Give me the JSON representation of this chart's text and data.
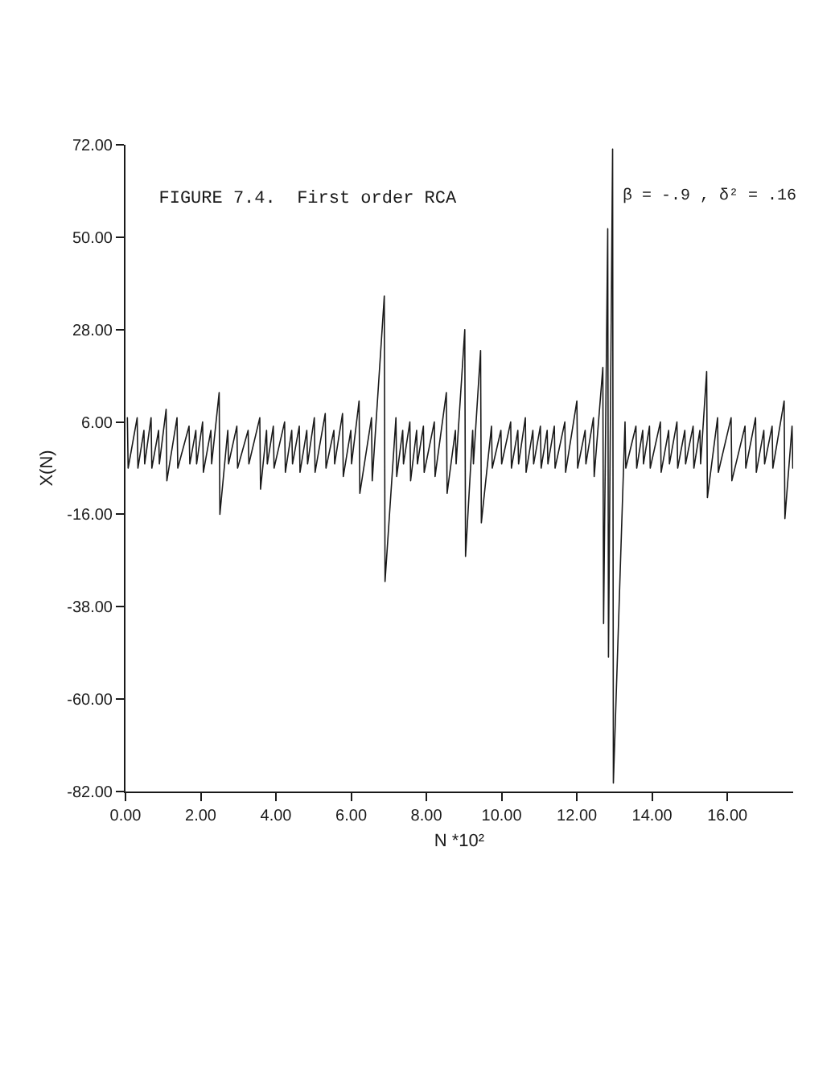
{
  "chart_data": {
    "type": "line",
    "title": "FIGURE 7.4.  First order RCA",
    "xlabel": "N *10²",
    "ylabel": "X(N)",
    "annotations": [
      "β = -.9 , δ² = .16"
    ],
    "x": [
      0.05,
      0.07,
      0.31,
      0.33,
      0.49,
      0.51,
      0.68,
      0.7,
      0.88,
      0.9,
      1.08,
      1.1,
      1.37,
      1.39,
      1.69,
      1.71,
      1.87,
      1.89,
      2.05,
      2.07,
      2.27,
      2.29,
      2.49,
      2.51,
      2.72,
      2.74,
      2.96,
      2.98,
      3.26,
      3.28,
      3.57,
      3.59,
      3.75,
      3.77,
      3.93,
      3.95,
      4.23,
      4.25,
      4.42,
      4.44,
      4.62,
      4.64,
      4.82,
      4.84,
      5.02,
      5.04,
      5.31,
      5.33,
      5.54,
      5.56,
      5.77,
      5.79,
      5.99,
      6.01,
      6.21,
      6.23,
      6.54,
      6.56,
      6.88,
      6.9,
      7.19,
      7.21,
      7.37,
      7.39,
      7.56,
      7.58,
      7.74,
      7.76,
      7.92,
      7.94,
      8.21,
      8.23,
      8.53,
      8.55,
      8.77,
      8.79,
      9.02,
      9.04,
      9.23,
      9.25,
      9.44,
      9.46,
      9.73,
      9.75,
      9.98,
      10.0,
      10.24,
      10.26,
      10.43,
      10.45,
      10.63,
      10.65,
      10.83,
      10.85,
      11.03,
      11.05,
      11.21,
      11.23,
      11.4,
      11.42,
      11.68,
      11.7,
      12.0,
      12.02,
      12.22,
      12.24,
      12.44,
      12.46,
      12.69,
      12.71,
      12.82,
      12.84,
      12.95,
      12.97,
      13.28,
      13.3,
      13.57,
      13.59,
      13.75,
      13.77,
      13.93,
      13.95,
      14.22,
      14.24,
      14.44,
      14.46,
      14.66,
      14.68,
      14.87,
      14.89,
      15.09,
      15.11,
      15.27,
      15.29,
      15.45,
      15.47,
      15.74,
      15.76,
      16.1,
      16.12,
      16.47,
      16.49,
      16.75,
      16.77,
      16.97,
      16.99,
      17.19,
      17.21,
      17.51,
      17.53,
      17.72,
      17.74
    ],
    "values": [
      7,
      -5,
      7,
      -5,
      4,
      -4,
      7,
      -5,
      4,
      -4,
      9,
      -8,
      7,
      -5,
      5,
      -4,
      4,
      -4,
      6,
      -6,
      4,
      -4,
      13,
      -16,
      4,
      -4,
      5,
      -5,
      4,
      -4,
      7,
      -10,
      4,
      -4,
      5,
      -5,
      6,
      -6,
      4,
      -4,
      5,
      -6,
      4,
      -4,
      7,
      -6,
      8,
      -5,
      4,
      -4,
      8,
      -7,
      4,
      -4,
      11,
      -11,
      7,
      -8,
      36,
      -32,
      7,
      -7,
      4,
      -4,
      6,
      -8,
      4,
      -4,
      5,
      -6,
      6,
      -7,
      13,
      -11,
      4,
      -4,
      28,
      -26,
      4,
      -4,
      23,
      -18,
      5,
      -5,
      4,
      -4,
      6,
      -5,
      4,
      -4,
      7,
      -6,
      4,
      -4,
      5,
      -5,
      4,
      -4,
      5,
      -5,
      6,
      -6,
      11,
      -5,
      4,
      -4,
      7,
      -7,
      19,
      -42,
      52,
      -50,
      71,
      -80,
      6,
      -5,
      5,
      -5,
      4,
      -4,
      5,
      -5,
      6,
      -6,
      4,
      -4,
      6,
      -5,
      4,
      -4,
      5,
      -5,
      4,
      -4,
      18,
      -12,
      7,
      -6,
      7,
      -8,
      5,
      -5,
      7,
      -6,
      4,
      -4,
      5,
      -5,
      11,
      -17,
      5,
      -5
    ],
    "color": "#1a1a1a",
    "xlim": [
      0,
      17.75
    ],
    "xticks": [
      {
        "value": 0,
        "label": "0.00"
      },
      {
        "value": 2,
        "label": "2.00"
      },
      {
        "value": 4,
        "label": "4.00"
      },
      {
        "value": 6,
        "label": "6.00"
      },
      {
        "value": 8,
        "label": "8.00"
      },
      {
        "value": 10,
        "label": "10.00"
      },
      {
        "value": 12,
        "label": "12.00"
      },
      {
        "value": 14,
        "label": "14.00"
      },
      {
        "value": 16,
        "label": "16.00"
      }
    ],
    "ylim": [
      -82,
      72
    ],
    "yticks": [
      {
        "value": 72,
        "label": "72.00"
      },
      {
        "value": 50,
        "label": "50.00"
      },
      {
        "value": 28,
        "label": "28.00"
      },
      {
        "value": 6,
        "label": "6.00"
      },
      {
        "value": -16,
        "label": "-16.00"
      },
      {
        "value": -38,
        "label": "-38.00"
      },
      {
        "value": -60,
        "label": "-60.00"
      },
      {
        "value": -82,
        "label": "-82.00"
      }
    ],
    "grid": false,
    "legend": false,
    "marker": "none",
    "line_style": "solid"
  }
}
